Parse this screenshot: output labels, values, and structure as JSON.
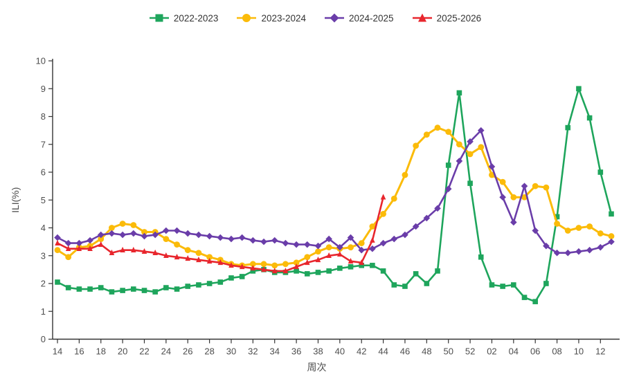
{
  "chart_data": {
    "type": "line",
    "title": "",
    "xlabel": "周次",
    "ylabel": "ILI(%)",
    "ylim": [
      0,
      10
    ],
    "y_ticks": [
      0,
      1,
      2,
      3,
      4,
      5,
      6,
      7,
      8,
      9,
      10
    ],
    "grid": false,
    "legend_position": "top-center",
    "x": [
      "14",
      "15",
      "16",
      "17",
      "18",
      "19",
      "20",
      "21",
      "22",
      "23",
      "24",
      "25",
      "26",
      "27",
      "28",
      "29",
      "30",
      "31",
      "32",
      "33",
      "34",
      "35",
      "36",
      "37",
      "38",
      "39",
      "40",
      "41",
      "42",
      "43",
      "44",
      "45",
      "46",
      "47",
      "48",
      "49",
      "50",
      "51",
      "52",
      "01",
      "02",
      "03",
      "04",
      "05",
      "06",
      "07",
      "08",
      "09",
      "10",
      "11",
      "12",
      "13"
    ],
    "x_tick_labels": [
      "14",
      "16",
      "18",
      "20",
      "22",
      "24",
      "26",
      "28",
      "30",
      "32",
      "34",
      "36",
      "38",
      "40",
      "42",
      "44",
      "46",
      "48",
      "50",
      "52",
      "02",
      "04",
      "06",
      "08",
      "10",
      "12"
    ],
    "series": [
      {
        "name": "2022-2023",
        "color": "#1ea55c",
        "marker": "square",
        "values": [
          2.05,
          1.85,
          1.8,
          1.8,
          1.85,
          1.7,
          1.75,
          1.8,
          1.75,
          1.7,
          1.85,
          1.8,
          1.9,
          1.95,
          2.0,
          2.05,
          2.2,
          2.25,
          2.45,
          2.5,
          2.4,
          2.4,
          2.45,
          2.35,
          2.4,
          2.45,
          2.55,
          2.6,
          2.65,
          2.65,
          2.45,
          1.95,
          1.9,
          2.35,
          2.0,
          2.45,
          6.25,
          8.85,
          5.6,
          2.95,
          1.95,
          1.9,
          1.95,
          1.5,
          1.35,
          2.0,
          4.4,
          7.6,
          9.0,
          7.95,
          6.0,
          4.5
        ]
      },
      {
        "name": "2023-2024",
        "color": "#fbbb09",
        "marker": "circle",
        "values": [
          3.2,
          2.95,
          3.3,
          3.35,
          3.6,
          4.0,
          4.15,
          4.1,
          3.85,
          3.85,
          3.6,
          3.4,
          3.2,
          3.1,
          2.95,
          2.85,
          2.7,
          2.65,
          2.7,
          2.7,
          2.65,
          2.7,
          2.75,
          2.95,
          3.15,
          3.3,
          3.25,
          3.3,
          3.45,
          4.05,
          4.5,
          5.05,
          5.9,
          6.95,
          7.35,
          7.6,
          7.45,
          7.0,
          6.65,
          6.9,
          5.9,
          5.65,
          5.1,
          5.1,
          5.5,
          5.45,
          4.15,
          3.9,
          4.0,
          4.05,
          3.8,
          3.7
        ]
      },
      {
        "name": "2024-2025",
        "color": "#6a3da9",
        "marker": "diamond",
        "values": [
          3.65,
          3.45,
          3.45,
          3.55,
          3.75,
          3.8,
          3.75,
          3.8,
          3.7,
          3.75,
          3.9,
          3.9,
          3.8,
          3.75,
          3.7,
          3.65,
          3.6,
          3.65,
          3.55,
          3.5,
          3.55,
          3.45,
          3.4,
          3.4,
          3.35,
          3.6,
          3.3,
          3.65,
          3.2,
          3.25,
          3.45,
          3.6,
          3.75,
          4.05,
          4.35,
          4.7,
          5.4,
          6.4,
          7.1,
          7.5,
          6.2,
          5.1,
          4.2,
          5.5,
          3.9,
          3.35,
          3.1,
          3.1,
          3.15,
          3.2,
          3.3,
          3.5
        ]
      },
      {
        "name": "2025-2026",
        "color": "#e8262d",
        "marker": "triangle",
        "values": [
          3.45,
          3.25,
          3.25,
          3.25,
          3.4,
          3.1,
          3.2,
          3.2,
          3.15,
          3.1,
          3.0,
          2.95,
          2.9,
          2.85,
          2.8,
          2.75,
          2.65,
          2.6,
          2.55,
          2.5,
          2.45,
          2.45,
          2.6,
          2.75,
          2.85,
          3.0,
          3.05,
          2.8,
          2.75,
          3.55,
          5.1,
          null,
          null,
          null,
          null,
          null,
          null,
          null,
          null,
          null,
          null,
          null,
          null,
          null,
          null,
          null,
          null,
          null,
          null,
          null,
          null,
          null
        ]
      }
    ],
    "axis_color": "#333333",
    "text_color": "#4d4d4d"
  }
}
